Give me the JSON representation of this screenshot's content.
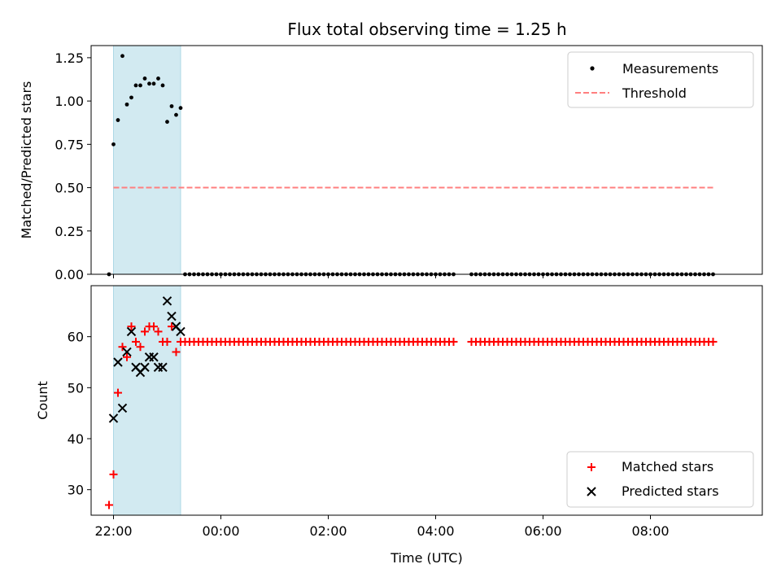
{
  "chart_data": [
    {
      "type": "scatter",
      "title": "Flux total observing time = 1.25 h",
      "xlabel": "",
      "ylabel": "Matched/Predicted stars",
      "ylim": [
        0,
        1.32
      ],
      "xlim": [
        "21:35",
        "10:05"
      ],
      "yticks": [
        "0.00",
        "0.25",
        "0.50",
        "0.75",
        "1.00",
        "1.25"
      ],
      "highlight_span": {
        "start": "22:00",
        "end": "23:15",
        "color": "#add8e6"
      },
      "legend_position": "upper right",
      "legend": [
        {
          "label": "Measurements",
          "marker": "dot",
          "color": "#000000"
        },
        {
          "label": "Threshold",
          "marker": "dashed-line",
          "color": "#ff7f7f"
        }
      ],
      "series": [
        {
          "name": "Measurements",
          "color": "#000000",
          "x": [
            "21:55",
            "22:00",
            "22:05",
            "22:10",
            "22:15",
            "22:20",
            "22:25",
            "22:30",
            "22:35",
            "22:40",
            "22:45",
            "22:50",
            "22:55",
            "23:00",
            "23:05",
            "23:10",
            "23:15"
          ],
          "y": [
            0.0,
            0.75,
            0.89,
            1.26,
            0.98,
            1.02,
            1.09,
            1.09,
            1.13,
            1.1,
            1.1,
            1.13,
            1.09,
            0.88,
            0.97,
            0.92,
            0.96
          ],
          "zero_runs": [
            {
              "start": "23:20",
              "end": "04:20",
              "step_minutes": 5,
              "value": 0
            },
            {
              "start": "04:40",
              "end": "09:10",
              "step_minutes": 5,
              "value": 0
            }
          ]
        },
        {
          "name": "Threshold",
          "color": "#ff7f7f",
          "line_style": "dashed",
          "x": [
            "22:00",
            "09:10"
          ],
          "y": [
            0.5,
            0.5
          ]
        }
      ]
    },
    {
      "type": "scatter",
      "title": "",
      "xlabel": "Time (UTC)",
      "ylabel": "Count",
      "ylim": [
        25,
        70
      ],
      "xlim": [
        "21:35",
        "10:05"
      ],
      "xticks": [
        "22:00",
        "00:00",
        "02:00",
        "04:00",
        "06:00",
        "08:00"
      ],
      "yticks": [
        "30",
        "40",
        "50",
        "60"
      ],
      "highlight_span": {
        "start": "22:00",
        "end": "23:15",
        "color": "#add8e6"
      },
      "legend_position": "lower right",
      "legend": [
        {
          "label": "Matched stars",
          "marker": "plus",
          "color": "#ff0000"
        },
        {
          "label": "Predicted stars",
          "marker": "x",
          "color": "#000000"
        }
      ],
      "series": [
        {
          "name": "Matched stars",
          "color": "#ff0000",
          "marker": "plus",
          "x": [
            "21:55",
            "22:00",
            "22:05",
            "22:10",
            "22:15",
            "22:20",
            "22:25",
            "22:30",
            "22:35",
            "22:40",
            "22:45",
            "22:50",
            "22:55",
            "23:00",
            "23:05",
            "23:10",
            "23:15"
          ],
          "y": [
            27,
            33,
            49,
            58,
            56,
            62,
            59,
            58,
            61,
            62,
            62,
            61,
            59,
            59,
            62,
            57,
            59
          ],
          "constant_runs": [
            {
              "start": "23:20",
              "end": "04:20",
              "step_minutes": 5,
              "value": 59
            },
            {
              "start": "04:40",
              "end": "09:10",
              "step_minutes": 5,
              "value": 59
            }
          ]
        },
        {
          "name": "Predicted stars",
          "color": "#000000",
          "marker": "x",
          "x": [
            "22:00",
            "22:05",
            "22:10",
            "22:15",
            "22:20",
            "22:25",
            "22:30",
            "22:35",
            "22:40",
            "22:45",
            "22:50",
            "22:55",
            "23:00",
            "23:05",
            "23:10",
            "23:15"
          ],
          "y": [
            44,
            55,
            46,
            57,
            61,
            54,
            53,
            54,
            56,
            56,
            54,
            54,
            67,
            64,
            62,
            61
          ]
        }
      ]
    }
  ]
}
